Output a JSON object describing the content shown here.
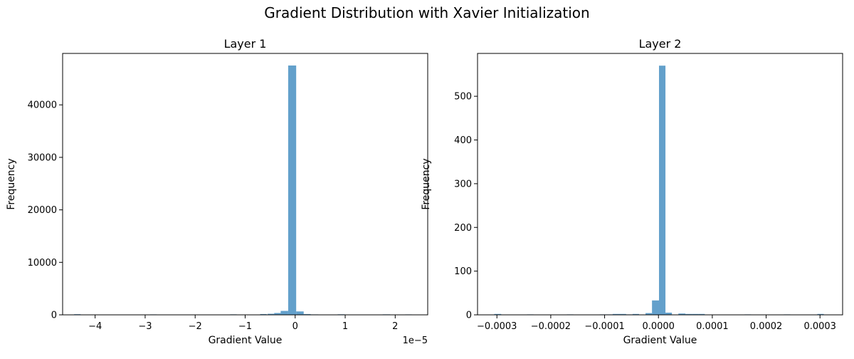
{
  "figure": {
    "suptitle": "Gradient Distribution with Xavier Initialization",
    "bar_color": "#5b9bc8"
  },
  "chart_data": [
    {
      "type": "bar",
      "title": "Layer 1",
      "xlabel": "Gradient Value",
      "ylabel": "Frequency",
      "x_offset_label": "1e−5",
      "xlim": [
        -4.65,
        2.65
      ],
      "ylim": [
        0,
        49800
      ],
      "xticks": [
        -4,
        -3,
        -2,
        -1,
        0,
        1,
        2
      ],
      "xtick_labels": [
        "−4",
        "−3",
        "−2",
        "−1",
        "0",
        "1",
        "2"
      ],
      "yticks": [
        0,
        10000,
        20000,
        30000,
        40000
      ],
      "ytick_labels": [
        "0",
        "10000",
        "20000",
        "30000",
        "40000"
      ],
      "bins": [
        {
          "x0": -4.42,
          "x1": -4.29,
          "value": 120
        },
        {
          "x0": -2.9,
          "x1": -2.77,
          "value": 80
        },
        {
          "x0": -1.3,
          "x1": -1.17,
          "value": 90
        },
        {
          "x0": -0.7,
          "x1": -0.57,
          "value": 150
        },
        {
          "x0": -0.55,
          "x1": -0.42,
          "value": 200
        },
        {
          "x0": -0.42,
          "x1": -0.29,
          "value": 350
        },
        {
          "x0": -0.29,
          "x1": -0.14,
          "value": 750
        },
        {
          "x0": -0.14,
          "x1": 0.02,
          "value": 47500
        },
        {
          "x0": 0.02,
          "x1": 0.17,
          "value": 650
        },
        {
          "x0": 0.17,
          "x1": 0.31,
          "value": 150
        },
        {
          "x0": 0.31,
          "x1": 0.46,
          "value": 80
        },
        {
          "x0": 0.85,
          "x1": 0.99,
          "value": 100
        },
        {
          "x0": 1.75,
          "x1": 1.9,
          "value": 90
        },
        {
          "x0": 2.2,
          "x1": 2.33,
          "value": 80
        }
      ]
    },
    {
      "type": "bar",
      "title": "Layer 2",
      "xlabel": "Gradient Value",
      "ylabel": "Frequency",
      "xlim": [
        -0.000336,
        0.000342
      ],
      "ylim": [
        0,
        598
      ],
      "xticks": [
        -0.0003,
        -0.0002,
        -0.0001,
        0,
        0.0001,
        0.0002,
        0.0003
      ],
      "xtick_labels": [
        "−0.0003",
        "−0.0002",
        "−0.0001",
        "0.0000",
        "0.0001",
        "0.0002",
        "0.0003"
      ],
      "yticks": [
        0,
        100,
        200,
        300,
        400,
        500
      ],
      "ytick_labels": [
        "0",
        "100",
        "200",
        "300",
        "400",
        "500"
      ],
      "bins": [
        {
          "x0": -0.000305,
          "x1": -0.000292,
          "value": 2
        },
        {
          "x0": -0.000244,
          "x1": -0.000232,
          "value": 1
        },
        {
          "x0": -0.00017,
          "x1": -0.000158,
          "value": 1
        },
        {
          "x0": -0.000109,
          "x1": -9.7e-05,
          "value": 1
        },
        {
          "x0": -9.7e-05,
          "x1": -8.5e-05,
          "value": 1
        },
        {
          "x0": -8.5e-05,
          "x1": -7.3e-05,
          "value": 2
        },
        {
          "x0": -7.3e-05,
          "x1": -6e-05,
          "value": 2
        },
        {
          "x0": -6e-05,
          "x1": -4.8e-05,
          "value": 1
        },
        {
          "x0": -4.8e-05,
          "x1": -3.6e-05,
          "value": 2
        },
        {
          "x0": -2.4e-05,
          "x1": -1.2e-05,
          "value": 4
        },
        {
          "x0": -1.2e-05,
          "x1": 1e-06,
          "value": 33
        },
        {
          "x0": 1e-06,
          "x1": 1.3e-05,
          "value": 570
        },
        {
          "x0": 1.3e-05,
          "x1": 2.5e-05,
          "value": 5
        },
        {
          "x0": 3.7e-05,
          "x1": 5e-05,
          "value": 3
        },
        {
          "x0": 5e-05,
          "x1": 6.2e-05,
          "value": 2
        },
        {
          "x0": 6.2e-05,
          "x1": 7.4e-05,
          "value": 2
        },
        {
          "x0": 7.4e-05,
          "x1": 8.6e-05,
          "value": 2
        },
        {
          "x0": 0.00016,
          "x1": 0.000172,
          "value": 1
        },
        {
          "x0": 0.000233,
          "x1": 0.000245,
          "value": 1
        },
        {
          "x0": 0.000295,
          "x1": 0.000307,
          "value": 2
        }
      ]
    }
  ]
}
